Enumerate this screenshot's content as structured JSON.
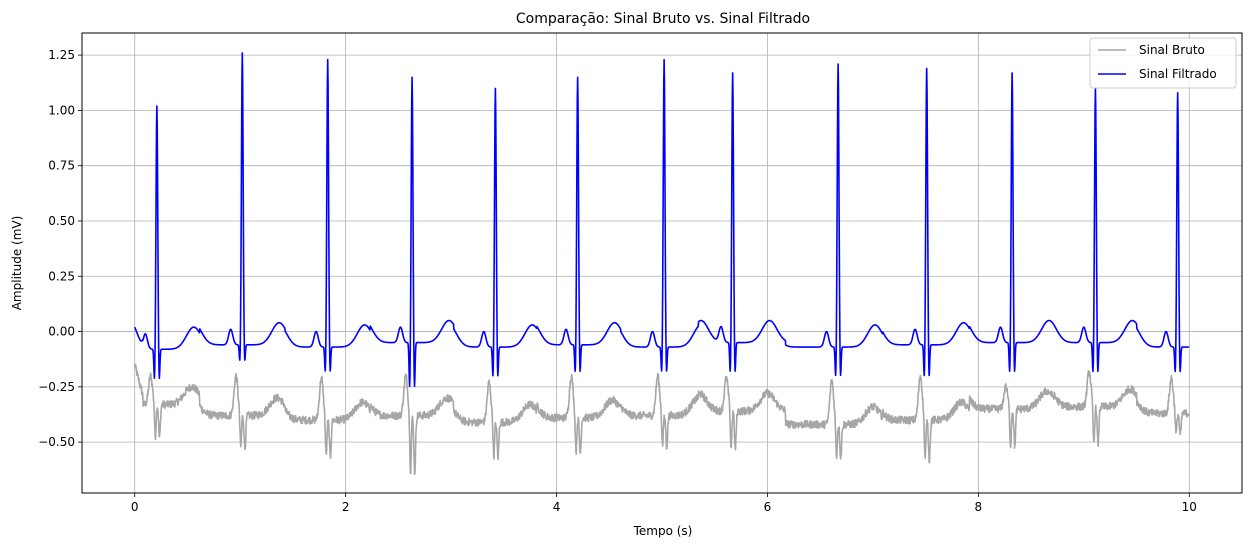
{
  "chart_data": {
    "type": "line",
    "title": "Comparação: Sinal Bruto vs. Sinal Filtrado",
    "xlabel": "Tempo (s)",
    "ylabel": "Amplitude (mV)",
    "xlim": [
      -0.5,
      10.5
    ],
    "ylim": [
      -0.73,
      1.35
    ],
    "xticks": [
      0,
      2,
      4,
      6,
      8,
      10
    ],
    "xtick_labels": [
      "0",
      "2",
      "4",
      "6",
      "8",
      "10"
    ],
    "yticks": [
      -0.5,
      -0.25,
      0.0,
      0.25,
      0.5,
      0.75,
      1.0,
      1.25
    ],
    "ytick_labels": [
      "−0.50",
      "−0.25",
      "0.00",
      "0.25",
      "0.50",
      "0.75",
      "1.00",
      "1.25"
    ],
    "grid": true,
    "legend_position": "top-right",
    "r_peak_times": [
      0.21,
      1.02,
      1.83,
      2.63,
      3.42,
      4.2,
      5.02,
      5.67,
      6.67,
      7.51,
      8.32,
      9.11,
      9.89
    ],
    "r_peak_amplitudes_filtered": [
      1.02,
      1.26,
      1.23,
      1.15,
      1.1,
      1.15,
      1.23,
      1.17,
      1.21,
      1.19,
      1.17,
      1.1,
      1.08
    ],
    "series": [
      {
        "name": "Sinal Bruto",
        "color": "#a6a6a6",
        "baseline_by_beat": [
          -0.33,
          -0.38,
          -0.4,
          -0.38,
          -0.41,
          -0.39,
          -0.38,
          -0.36,
          -0.42,
          -0.4,
          -0.35,
          -0.34,
          -0.37
        ],
        "r_peak_amplitudes": [
          -0.2,
          -0.2,
          -0.21,
          -0.2,
          -0.23,
          -0.2,
          -0.2,
          -0.21,
          -0.22,
          -0.2,
          -0.25,
          -0.18,
          -0.21
        ],
        "s_trough_amplitudes": [
          -0.48,
          -0.53,
          -0.57,
          -0.64,
          -0.57,
          -0.55,
          -0.52,
          -0.53,
          -0.57,
          -0.58,
          -0.52,
          -0.51,
          -0.47
        ]
      },
      {
        "name": "Sinal Filtrado",
        "color": "#0000ff",
        "baseline_by_beat": [
          -0.08,
          -0.06,
          -0.07,
          -0.05,
          -0.07,
          -0.06,
          -0.07,
          -0.05,
          -0.07,
          -0.06,
          -0.05,
          -0.05,
          -0.07
        ],
        "s_trough_amplitudes": [
          -0.23,
          -0.15,
          -0.2,
          -0.27,
          -0.22,
          -0.2,
          -0.2,
          -0.2,
          -0.22,
          -0.22,
          -0.2,
          -0.2,
          -0.2
        ]
      }
    ]
  }
}
